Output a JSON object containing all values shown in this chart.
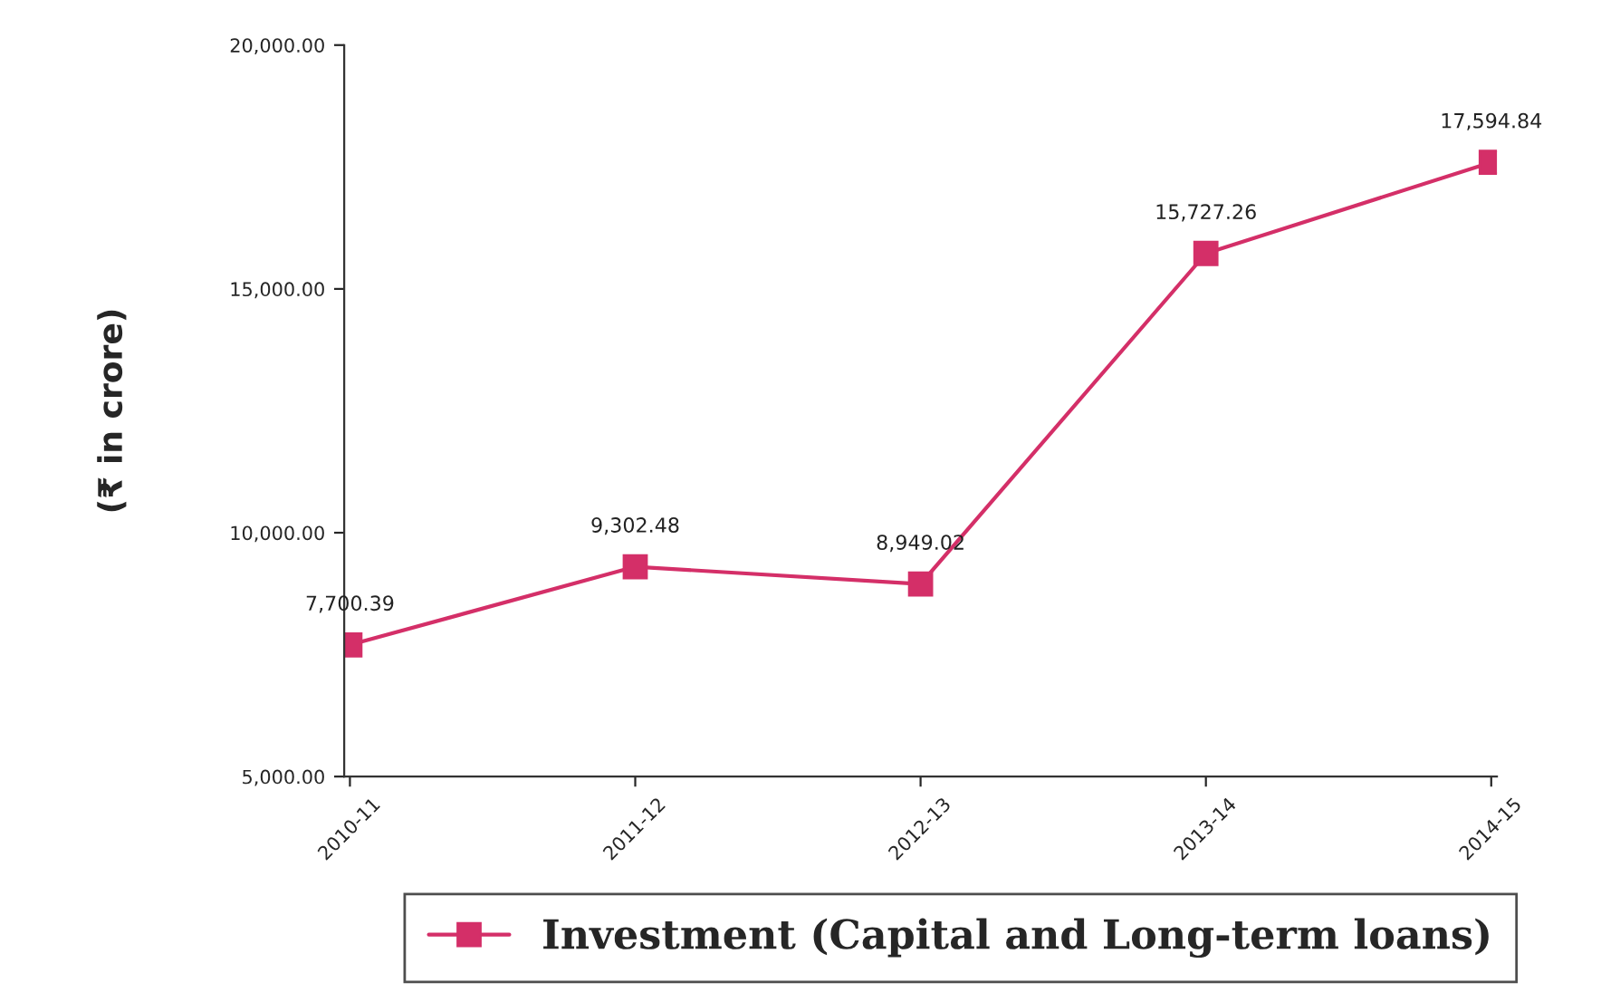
{
  "chart_data": {
    "type": "line",
    "ylabel": "(₹ in crore)",
    "categories": [
      "2010-11",
      "2011-12",
      "2012-13",
      "2013-14",
      "2014-15"
    ],
    "series": [
      {
        "name": "Investment (Capital and Long-term loans)",
        "color": "#d42f68",
        "values": [
          7700.39,
          9302.48,
          8949.02,
          15727.26,
          17594.84
        ],
        "value_labels": [
          "7,700.39",
          "9,302.48",
          "8,949.02",
          "15,727.26",
          "17,594.84"
        ]
      }
    ],
    "ylim": [
      5000,
      20000
    ],
    "yticks": [
      {
        "value": 5000,
        "label": "5,000.00"
      },
      {
        "value": 10000,
        "label": "10,000.00"
      },
      {
        "value": 15000,
        "label": "15,000.00"
      },
      {
        "value": 20000,
        "label": "20,000.00"
      }
    ],
    "marker": "square",
    "line_style": "solid",
    "grid": false,
    "legend": "bottom"
  }
}
